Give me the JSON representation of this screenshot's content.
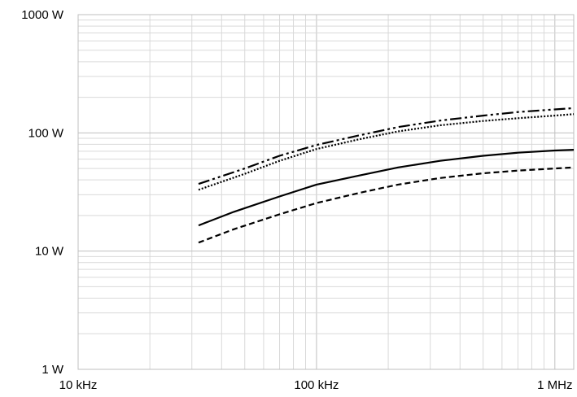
{
  "chart_data": {
    "type": "line",
    "title": "",
    "xlabel": "",
    "ylabel": "",
    "x_scale": "log",
    "y_scale": "log",
    "xlim": [
      10000,
      1200000
    ],
    "ylim": [
      1,
      1000
    ],
    "grid": true,
    "legend": "none",
    "x_ticks": [
      {
        "value": 10000,
        "label": "10 kHz"
      },
      {
        "value": 100000,
        "label": "100 kHz"
      },
      {
        "value": 1000000,
        "label": "1 MHz"
      }
    ],
    "y_ticks": [
      {
        "value": 1,
        "label": "1 W"
      },
      {
        "value": 10,
        "label": "10 W"
      },
      {
        "value": 100,
        "label": "100 W"
      },
      {
        "value": 1000,
        "label": "1000 W"
      }
    ],
    "series": [
      {
        "style": "dash-dot-dot",
        "x": [
          32000,
          50000,
          70000,
          100000,
          150000,
          220000,
          330000,
          500000,
          700000,
          1000000,
          1200000
        ],
        "y": [
          37,
          50,
          64,
          79,
          95,
          112,
          127,
          140,
          150,
          158,
          162
        ]
      },
      {
        "style": "dotted",
        "x": [
          32000,
          50000,
          70000,
          100000,
          150000,
          220000,
          330000,
          500000,
          700000,
          1000000,
          1200000
        ],
        "y": [
          33,
          45,
          58,
          73,
          88,
          103,
          116,
          126,
          133,
          140,
          144
        ]
      },
      {
        "style": "solid",
        "x": [
          32000,
          45000,
          70000,
          100000,
          150000,
          220000,
          330000,
          500000,
          700000,
          1000000,
          1200000
        ],
        "y": [
          16.5,
          21.5,
          29,
          36.5,
          43.5,
          51,
          58,
          64,
          68,
          71,
          72
        ]
      },
      {
        "style": "dashed",
        "x": [
          32000,
          45000,
          70000,
          100000,
          150000,
          220000,
          330000,
          500000,
          700000,
          1000000,
          1200000
        ],
        "y": [
          11.8,
          15.3,
          20.5,
          25.5,
          31,
          36.5,
          41.5,
          45.5,
          48,
          50,
          51
        ]
      }
    ]
  }
}
